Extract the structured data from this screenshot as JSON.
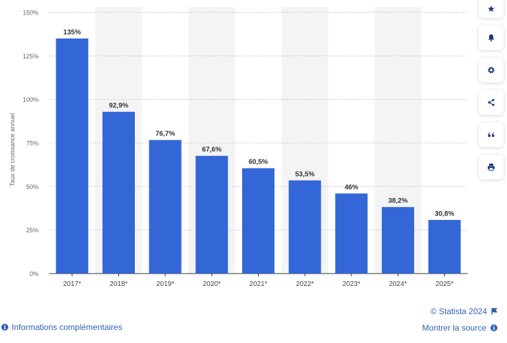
{
  "chart_data": {
    "type": "bar",
    "categories": [
      "2017*",
      "2018*",
      "2019*",
      "2020*",
      "2021*",
      "2022*",
      "2023*",
      "2024*",
      "2025*"
    ],
    "values": [
      135,
      92.9,
      76.7,
      67.6,
      60.5,
      53.5,
      46,
      38.2,
      30.8
    ],
    "value_labels": [
      "135%",
      "92,9%",
      "76,7%",
      "67,6%",
      "60,5%",
      "53,5%",
      "46%",
      "38,2%",
      "30,8%"
    ],
    "ylabel": "Taux de croissance annuel",
    "ylim": [
      0,
      150
    ],
    "yticks": [
      0,
      25,
      50,
      75,
      100,
      125,
      150
    ],
    "ytick_labels": [
      "0%",
      "25%",
      "50%",
      "75%",
      "100%",
      "125%",
      "150%"
    ],
    "bar_color": "#3366d6",
    "grid": true
  },
  "toolbar": {
    "icons": [
      "star-icon",
      "bell-icon",
      "gear-icon",
      "share-icon",
      "quote-icon",
      "print-icon"
    ]
  },
  "footer": {
    "copyright": "© Statista 2024",
    "source_link": "Montrer la source",
    "info_link": "Informations complémentaires"
  },
  "colors": {
    "accent": "#2f5fb3",
    "bar": "#3366d6",
    "band": "#f4f4f4"
  }
}
